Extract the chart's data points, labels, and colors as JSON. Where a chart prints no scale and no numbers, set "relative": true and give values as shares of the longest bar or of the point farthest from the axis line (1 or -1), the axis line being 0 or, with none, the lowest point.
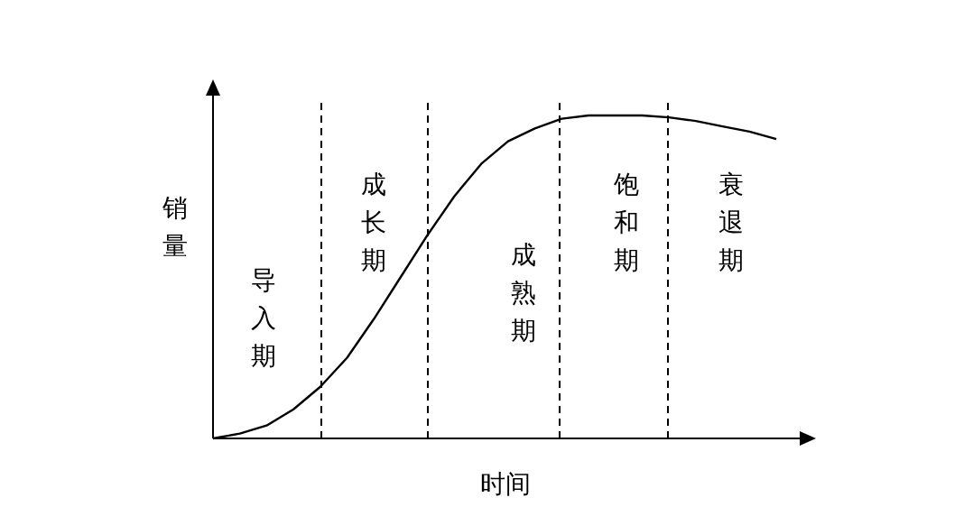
{
  "chart_data": {
    "type": "line",
    "relative": true,
    "xlabel": "时间",
    "ylabel": "销量",
    "color": "#000000",
    "categories": [
      null,
      null,
      null,
      null,
      null,
      null,
      null,
      null,
      null,
      null,
      null,
      null,
      null,
      null,
      null,
      null,
      null,
      null,
      null,
      null,
      null,
      null
    ],
    "values": [
      0,
      0.015,
      0.04,
      0.09,
      0.16,
      0.25,
      0.37,
      0.5,
      0.63,
      0.75,
      0.85,
      0.92,
      0.96,
      0.99,
      1.0,
      1.0,
      1.0,
      0.994,
      0.983,
      0.966,
      0.95,
      0.927
    ],
    "annotations": [
      "导入期",
      "成长期",
      "成熟期",
      "饱和期",
      "衰退期"
    ],
    "line_style": "solid",
    "grid": "x"
  }
}
